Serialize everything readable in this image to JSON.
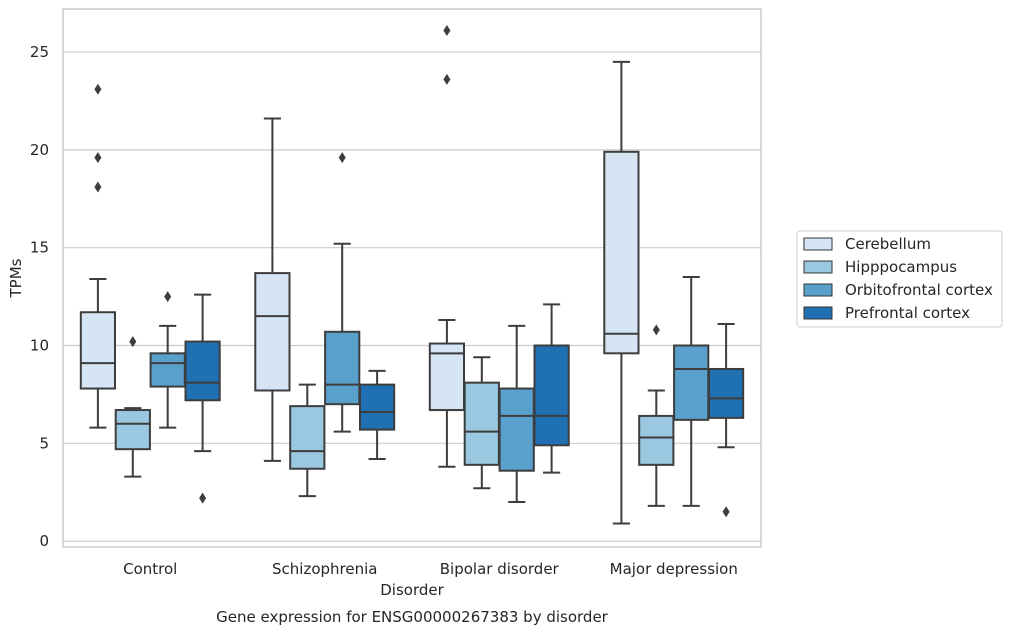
{
  "caption": "Gene expression for ENSG00000267383 by disorder",
  "chart_data": {
    "type": "box",
    "xlabel": "Disorder",
    "ylabel": "TPMs",
    "ylim": [
      -0.3,
      27.2
    ],
    "yticks": [
      0,
      5,
      10,
      15,
      20,
      25
    ],
    "categories": [
      "Control",
      "Schizophrenia",
      "Bipolar disorder",
      "Major depression"
    ],
    "grid": true,
    "legend_position": "right",
    "series": [
      {
        "name": "Cerebellum",
        "color": "#d6e5f4",
        "boxes": [
          {
            "q1": 7.8,
            "median": 9.1,
            "q3": 11.7,
            "whisker_low": 5.8,
            "whisker_high": 13.4,
            "outliers": [
              18.1,
              19.6,
              23.1
            ]
          },
          {
            "q1": 7.7,
            "median": 11.5,
            "q3": 13.7,
            "whisker_low": 4.1,
            "whisker_high": 21.6,
            "outliers": []
          },
          {
            "q1": 6.7,
            "median": 9.6,
            "q3": 10.1,
            "whisker_low": 3.8,
            "whisker_high": 11.3,
            "outliers": [
              23.6,
              26.1
            ]
          },
          {
            "q1": 9.6,
            "median": 10.6,
            "q3": 19.9,
            "whisker_low": 0.9,
            "whisker_high": 24.5,
            "outliers": []
          }
        ]
      },
      {
        "name": "Hipppocampus",
        "color": "#9ac8e0",
        "boxes": [
          {
            "q1": 4.7,
            "median": 6.0,
            "q3": 6.7,
            "whisker_low": 3.3,
            "whisker_high": 6.8,
            "outliers": [
              10.2
            ]
          },
          {
            "q1": 3.7,
            "median": 4.6,
            "q3": 6.9,
            "whisker_low": 2.3,
            "whisker_high": 8.0,
            "outliers": []
          },
          {
            "q1": 3.9,
            "median": 5.6,
            "q3": 8.1,
            "whisker_low": 2.7,
            "whisker_high": 9.4,
            "outliers": []
          },
          {
            "q1": 3.9,
            "median": 5.3,
            "q3": 6.4,
            "whisker_low": 1.8,
            "whisker_high": 7.7,
            "outliers": [
              10.8
            ]
          }
        ]
      },
      {
        "name": "Orbitofrontal cortex",
        "color": "#5aa0cd",
        "boxes": [
          {
            "q1": 7.9,
            "median": 9.1,
            "q3": 9.6,
            "whisker_low": 5.8,
            "whisker_high": 11.0,
            "outliers": [
              12.5
            ]
          },
          {
            "q1": 7.0,
            "median": 8.0,
            "q3": 10.7,
            "whisker_low": 5.6,
            "whisker_high": 15.2,
            "outliers": [
              19.6
            ]
          },
          {
            "q1": 3.6,
            "median": 6.4,
            "q3": 7.8,
            "whisker_low": 2.0,
            "whisker_high": 11.0,
            "outliers": []
          },
          {
            "q1": 6.2,
            "median": 8.8,
            "q3": 10.0,
            "whisker_low": 1.8,
            "whisker_high": 13.5,
            "outliers": []
          }
        ]
      },
      {
        "name": "Prefrontal cortex",
        "color": "#2070b4",
        "boxes": [
          {
            "q1": 7.2,
            "median": 8.1,
            "q3": 10.2,
            "whisker_low": 4.6,
            "whisker_high": 12.6,
            "outliers": [
              2.2
            ]
          },
          {
            "q1": 5.7,
            "median": 6.6,
            "q3": 8.0,
            "whisker_low": 4.2,
            "whisker_high": 8.7,
            "outliers": []
          },
          {
            "q1": 4.9,
            "median": 6.4,
            "q3": 10.0,
            "whisker_low": 3.5,
            "whisker_high": 12.1,
            "outliers": []
          },
          {
            "q1": 6.3,
            "median": 7.3,
            "q3": 8.8,
            "whisker_low": 4.8,
            "whisker_high": 11.1,
            "outliers": [
              1.5
            ]
          }
        ]
      }
    ]
  }
}
